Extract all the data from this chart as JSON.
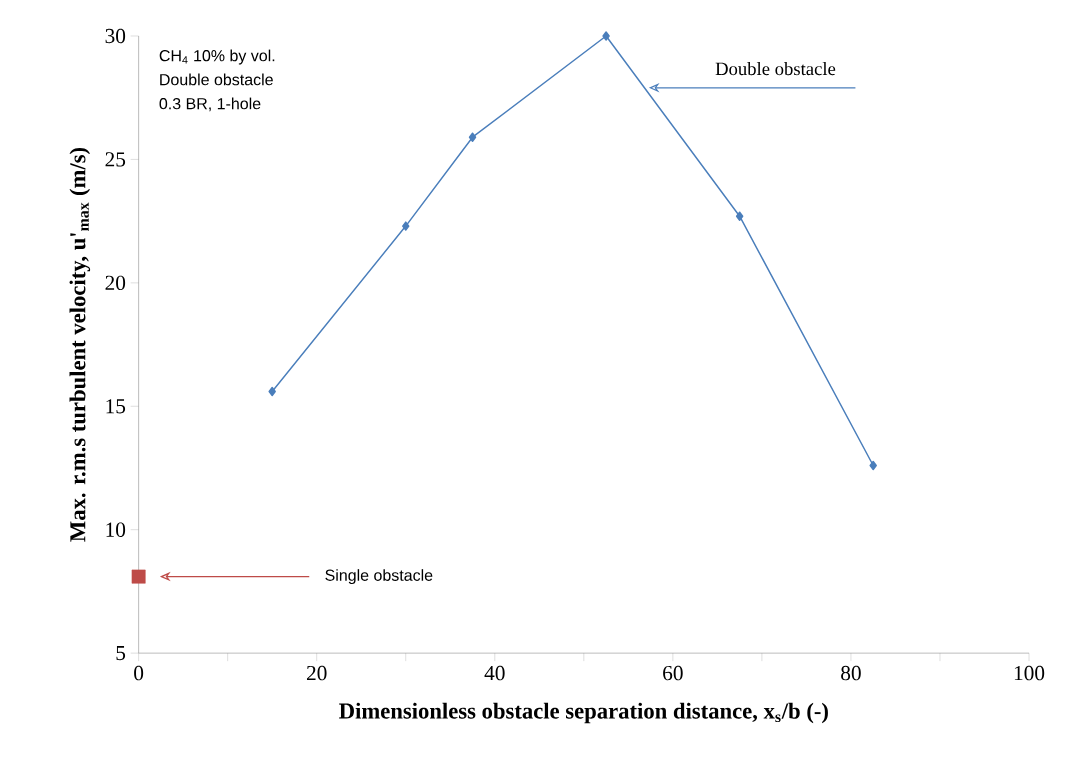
{
  "chart_data": {
    "type": "line",
    "xlabel": "Dimensionless obstacle separation distance, x$_{s}$/b (-)",
    "ylabel": "Max.  r.m.s turbulent velocity, u'$_{max}$ (m/s)",
    "series": [
      {
        "color": "#4a7ebb",
        "marker": "diamond",
        "x": [
          15,
          30,
          37.5,
          52.5,
          67.5,
          82.5
        ],
        "values": [
          15.6,
          22.3,
          25.9,
          30.0,
          22.7,
          12.6
        ]
      },
      {
        "type": "scatter",
        "color": "#be4b48",
        "marker": "square",
        "x": [
          0
        ],
        "values": [
          8.1
        ]
      }
    ],
    "annotations": [
      {
        "text": "Double obstacle",
        "x": 57.3,
        "y": 27.9
      },
      "Single obstacle",
      "CH$_{4}$ 10% by vol.",
      "Double obstacle",
      "0.3 BR, 1-hole"
    ],
    "xlim": [
      0,
      100
    ],
    "ylim": [
      5,
      30
    ],
    "xticks": [
      0,
      {
        "value": 10,
        "label": null
      },
      20,
      {
        "value": 30,
        "label": null
      },
      40,
      {
        "value": 50,
        "label": null
      },
      60,
      {
        "value": 70,
        "label": null
      },
      80,
      {
        "value": 90,
        "label": null
      },
      100
    ],
    "yticks": [
      5,
      10,
      15,
      20,
      25,
      30
    ],
    "grid": false
  }
}
